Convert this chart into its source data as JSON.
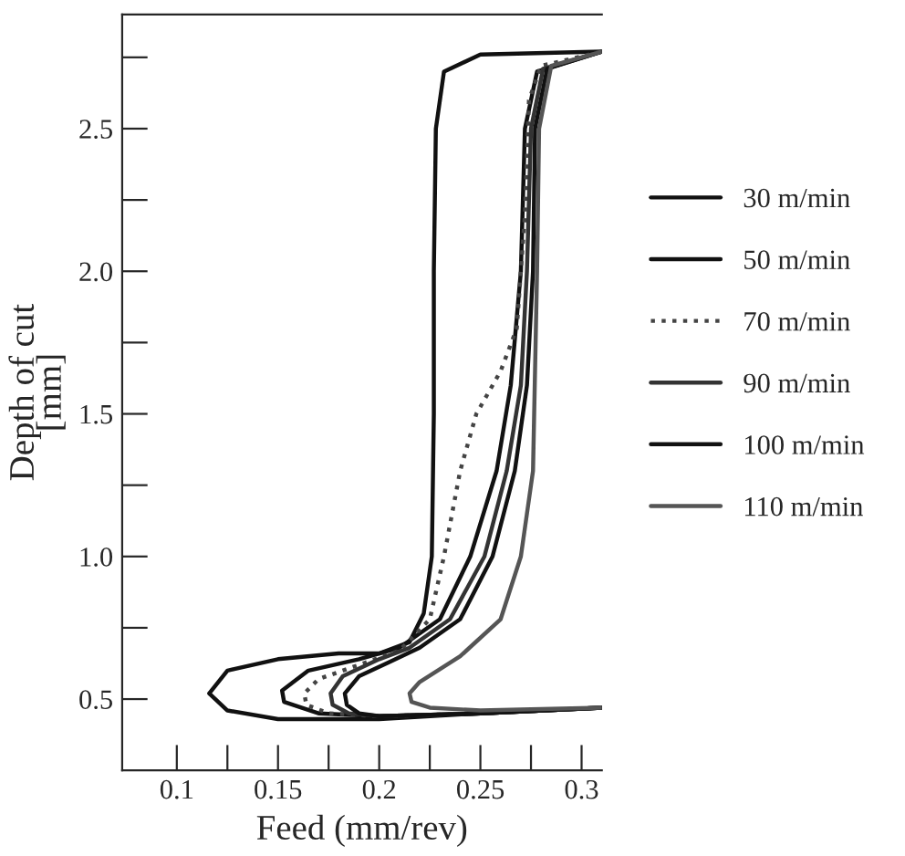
{
  "chart_data": {
    "type": "line",
    "xlabel": "Feed (mm/rev)",
    "ylabel": "Depth of cut\n[mm]",
    "xlim": [
      0.073,
      0.31
    ],
    "ylim": [
      0.25,
      2.9
    ],
    "xticks": [
      0.1,
      {
        "value": 0.125,
        "label": null
      },
      0.15,
      {
        "value": 0.175,
        "label": null
      },
      0.2,
      {
        "value": 0.225,
        "label": null
      },
      0.25,
      {
        "value": 0.275,
        "label": null
      },
      0.3
    ],
    "yticks": [
      0.5,
      {
        "value": 0.75,
        "label": null
      },
      {
        "value": 1.0,
        "label": "1.0"
      },
      {
        "value": 1.25,
        "label": null
      },
      1.5,
      {
        "value": 1.75,
        "label": null
      },
      {
        "value": 2.0,
        "label": "2.0"
      },
      {
        "value": 2.25,
        "label": null
      },
      2.5,
      {
        "value": 2.75,
        "label": null
      }
    ],
    "grid": false,
    "legend": "right",
    "marker": "none",
    "series": [
      {
        "name": "30 m/min",
        "color": "#111111",
        "line_style": "solid",
        "x": [
          0.31,
          0.25,
          0.2,
          0.15,
          0.125,
          0.116,
          0.125,
          0.15,
          0.18,
          0.2,
          0.215,
          0.222,
          0.226,
          0.227,
          0.227,
          0.228,
          0.232,
          0.25,
          0.31
        ],
        "values": [
          0.47,
          0.45,
          0.43,
          0.43,
          0.46,
          0.52,
          0.6,
          0.64,
          0.66,
          0.66,
          0.7,
          0.8,
          1.0,
          1.5,
          2.0,
          2.5,
          2.7,
          2.76,
          2.77
        ]
      },
      {
        "name": "50 m/min",
        "color": "#111111",
        "line_style": "solid",
        "x": [
          0.31,
          0.25,
          0.2,
          0.17,
          0.153,
          0.152,
          0.165,
          0.19,
          0.21,
          0.23,
          0.245,
          0.258,
          0.265,
          0.27,
          0.272,
          0.278,
          0.31
        ],
        "values": [
          0.47,
          0.45,
          0.44,
          0.45,
          0.49,
          0.53,
          0.6,
          0.64,
          0.68,
          0.78,
          1.0,
          1.3,
          1.6,
          2.0,
          2.5,
          2.7,
          2.77
        ]
      },
      {
        "name": "70 m/min",
        "color": "#444444",
        "line_style": "dotted",
        "x": [
          0.31,
          0.25,
          0.2,
          0.175,
          0.164,
          0.163,
          0.17,
          0.19,
          0.21,
          0.225,
          0.232,
          0.24,
          0.248,
          0.26,
          0.268,
          0.272,
          0.274,
          0.28,
          0.31
        ],
        "values": [
          0.47,
          0.45,
          0.44,
          0.45,
          0.48,
          0.52,
          0.57,
          0.62,
          0.67,
          0.78,
          1.0,
          1.3,
          1.5,
          1.65,
          1.8,
          2.2,
          2.6,
          2.72,
          2.77
        ]
      },
      {
        "name": "90 m/min",
        "color": "#333333",
        "line_style": "solid",
        "x": [
          0.31,
          0.25,
          0.2,
          0.185,
          0.177,
          0.176,
          0.182,
          0.2,
          0.215,
          0.235,
          0.252,
          0.263,
          0.27,
          0.273,
          0.275,
          0.281,
          0.31
        ],
        "values": [
          0.47,
          0.45,
          0.44,
          0.45,
          0.48,
          0.52,
          0.58,
          0.64,
          0.68,
          0.78,
          1.0,
          1.3,
          1.6,
          2.0,
          2.5,
          2.71,
          2.77
        ]
      },
      {
        "name": "100 m/min",
        "color": "#111111",
        "line_style": "solid",
        "x": [
          0.31,
          0.25,
          0.2,
          0.19,
          0.184,
          0.183,
          0.19,
          0.205,
          0.22,
          0.24,
          0.256,
          0.267,
          0.273,
          0.276,
          0.277,
          0.283,
          0.31
        ],
        "values": [
          0.47,
          0.45,
          0.44,
          0.45,
          0.48,
          0.52,
          0.58,
          0.63,
          0.68,
          0.78,
          1.0,
          1.3,
          1.6,
          2.0,
          2.5,
          2.71,
          2.77
        ]
      },
      {
        "name": "110 m/min",
        "color": "#555555",
        "line_style": "solid",
        "x": [
          0.31,
          0.25,
          0.225,
          0.216,
          0.215,
          0.22,
          0.24,
          0.26,
          0.27,
          0.276,
          0.278,
          0.279,
          0.285,
          0.31
        ],
        "values": [
          0.47,
          0.46,
          0.47,
          0.49,
          0.52,
          0.56,
          0.65,
          0.78,
          1.0,
          1.3,
          2.0,
          2.5,
          2.72,
          2.77
        ]
      }
    ]
  }
}
